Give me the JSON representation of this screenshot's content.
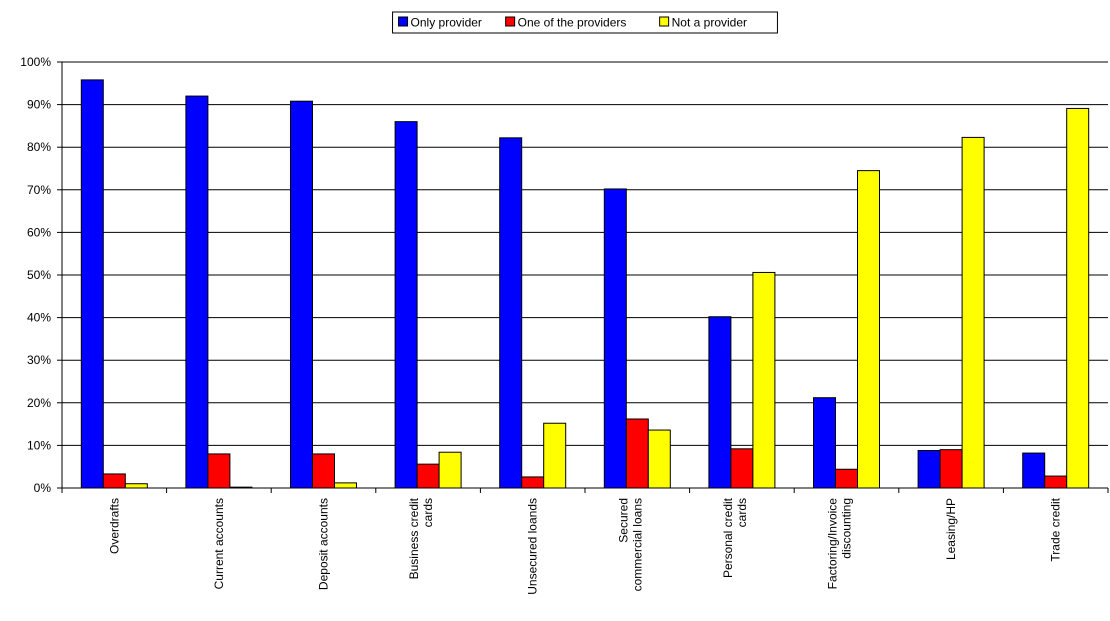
{
  "chart_data": {
    "type": "bar",
    "categories": [
      "Overdrafts",
      "Current accounts",
      "Deposit accounts",
      "Business credit\ncards",
      "Unsecured loands",
      "Secured\ncommercial loans",
      "Personal credit\ncards",
      "Factoring/Invoice\ndiscounting",
      "Leasing/HP",
      "Trade credit"
    ],
    "series": [
      {
        "name": "Only provider",
        "color": "#0000ff",
        "values": [
          95.8,
          92,
          90.8,
          86,
          82.2,
          70.2,
          40.2,
          21.2,
          8.8,
          8.2
        ]
      },
      {
        "name": "One of the providers",
        "color": "#ff0000",
        "values": [
          3.3,
          8,
          8,
          5.6,
          2.6,
          16.2,
          9.2,
          4.4,
          9,
          2.8
        ]
      },
      {
        "name": "Not a provider",
        "color": "#ffff00",
        "values": [
          1,
          0.2,
          1.2,
          8.4,
          15.2,
          13.6,
          50.6,
          74.5,
          82.3,
          89.1
        ]
      }
    ],
    "ylim": [
      0,
      100
    ],
    "yticks": [
      {
        "value": 0,
        "label": "0%"
      },
      {
        "value": 10,
        "label": "10%"
      },
      {
        "value": 20,
        "label": "20%"
      },
      {
        "value": 30,
        "label": "30%"
      },
      {
        "value": 40,
        "label": "40%"
      },
      {
        "value": 50,
        "label": "50%"
      },
      {
        "value": 60,
        "label": "60%"
      },
      {
        "value": 70,
        "label": "70%"
      },
      {
        "value": 80,
        "label": "80%"
      },
      {
        "value": 90,
        "label": "90%"
      },
      {
        "value": 100,
        "label": "100%"
      }
    ],
    "grid": true,
    "legend": "top"
  }
}
